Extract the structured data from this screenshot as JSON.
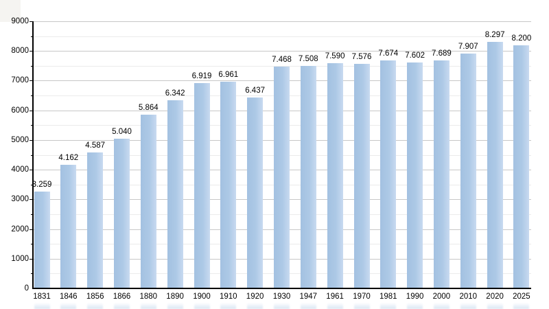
{
  "chart_data": {
    "type": "bar",
    "title": "",
    "categories": [
      "1831",
      "1846",
      "1856",
      "1866",
      "1880",
      "1890",
      "1900",
      "1910",
      "1920",
      "1930",
      "1947",
      "1961",
      "1970",
      "1981",
      "1990",
      "2000",
      "2010",
      "2020",
      "2025"
    ],
    "values": [
      3259,
      4162,
      4587,
      5040,
      5864,
      6342,
      6919,
      6961,
      6437,
      7468,
      7508,
      7590,
      7576,
      7674,
      7602,
      7689,
      7907,
      8297,
      8200
    ],
    "value_labels": [
      "3.259",
      "4.162",
      "4.587",
      "5.040",
      "5.864",
      "6.342",
      "6.919",
      "6.961",
      "6.437",
      "7.468",
      "7.508",
      "7.590",
      "7.576",
      "7.674",
      "7.602",
      "7.689",
      "7.907",
      "8.297",
      "8.200"
    ],
    "xlabel": "",
    "ylabel": "",
    "ylim": [
      0,
      9000
    ],
    "y_major_step": 1000,
    "y_minor_step": 500,
    "y_tick_labels": [
      "0",
      "1000",
      "2000",
      "3000",
      "4000",
      "5000",
      "6000",
      "7000",
      "8000",
      "9000"
    ],
    "grid": "horizontal, major and minor",
    "legend_position": "none",
    "colors": {
      "bar_left": "#a3c1e1",
      "bar_mid": "#adc9e6",
      "bar_right": "#c8daf0",
      "axis": "#000000",
      "major_grid": "#c7c7c7",
      "minor_grid": "#ebebeb",
      "text": "#000000",
      "background": "#ffffff"
    }
  }
}
